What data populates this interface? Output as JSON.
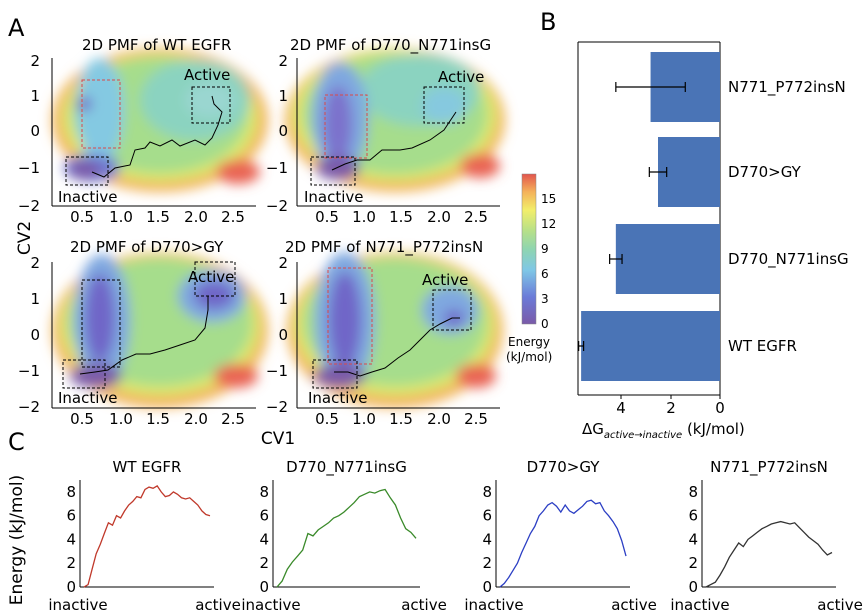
{
  "panel_letters": {
    "a": "A",
    "b": "B",
    "c": "C"
  },
  "pmf": {
    "titles": [
      "2D PMF of WT EGFR",
      "2D PMF of D770_N771insG",
      "2D PMF of D770>GY",
      "2D PMF of N771_P772insN"
    ],
    "xlabel": "CV1",
    "ylabel": "CV2",
    "x_ticks": [
      "0.5",
      "1.0",
      "1.5",
      "2.0",
      "2.5"
    ],
    "y_ticks": [
      "2",
      "1",
      "0",
      "−1",
      "−2"
    ],
    "active_label": "Active",
    "inactive_label": "Inactive",
    "colorbar_ticks": [
      "15",
      "12",
      "9",
      "6",
      "3",
      "0"
    ],
    "colorbar_title": "Energy",
    "colorbar_unit": "(kJ/mol)"
  },
  "chart_data": [
    {
      "type": "bar",
      "orientation": "horizontal",
      "categories": [
        "N771_P772insN",
        "D770>GY",
        "D770_N771insG",
        "WT EGFR"
      ],
      "values": [
        2.8,
        2.5,
        4.2,
        5.6
      ],
      "errors": [
        1.4,
        0.35,
        0.25,
        0.1
      ],
      "xticks": [
        "4",
        "2",
        "0"
      ],
      "xlabel_main": "ΔG",
      "xlabel_sub": "active→inactive",
      "xlabel_unit": " (kJ/mol)",
      "xlim": [
        0,
        5.75
      ],
      "color": "#4a74b6"
    },
    {
      "type": "line",
      "title": "WT EGFR",
      "color": "#c0392b",
      "values": [
        0,
        0.2,
        1.5,
        2.8,
        3.6,
        4.5,
        5.4,
        5.2,
        6.0,
        5.8,
        6.4,
        6.9,
        7.2,
        7.6,
        7.5,
        8.2,
        8.4,
        8.3,
        8.5,
        8.0,
        7.6,
        7.7,
        8.0,
        7.8,
        7.5,
        7.4,
        7.5,
        7.2,
        6.9,
        6.4,
        6.1,
        6.0
      ]
    },
    {
      "type": "line",
      "title": "D770_N771insG",
      "color": "#3a8a2a",
      "values": [
        0,
        0.5,
        1.5,
        2.1,
        2.6,
        3.1,
        4.5,
        4.3,
        4.8,
        5.1,
        5.4,
        5.8,
        6.0,
        6.3,
        6.7,
        7.1,
        7.6,
        7.8,
        8.0,
        7.9,
        8.1,
        8.2,
        7.5,
        6.9,
        5.8,
        4.9,
        4.6,
        4.1
      ]
    },
    {
      "type": "line",
      "title": "D770>GY",
      "color": "#2c3fc4",
      "values": [
        0,
        0.3,
        0.8,
        1.4,
        2.0,
        2.9,
        3.7,
        4.5,
        5.1,
        6.0,
        6.4,
        6.9,
        7.1,
        6.8,
        6.3,
        6.9,
        6.4,
        6.2,
        6.5,
        6.8,
        7.2,
        7.3,
        7.0,
        7.1,
        6.4,
        6.0,
        5.5,
        4.9,
        3.9,
        2.6
      ]
    },
    {
      "type": "line",
      "title": "N771_P772insN",
      "color": "#333333",
      "values": [
        0,
        0.2,
        0.4,
        1.0,
        1.7,
        2.5,
        3.1,
        3.7,
        3.4,
        4.0,
        4.3,
        4.6,
        4.9,
        5.1,
        5.3,
        5.4,
        5.5,
        5.4,
        5.3,
        5.4,
        5.0,
        4.6,
        4.2,
        3.9,
        3.6,
        3.1,
        2.7,
        2.9
      ]
    }
  ],
  "energy_plots": {
    "ylabel": "Energy (kJ/mol)",
    "y_ticks": [
      "8",
      "6",
      "4",
      "2",
      "0"
    ],
    "x_left": "inactive",
    "x_right": "active",
    "ylim": [
      0,
      9
    ]
  }
}
